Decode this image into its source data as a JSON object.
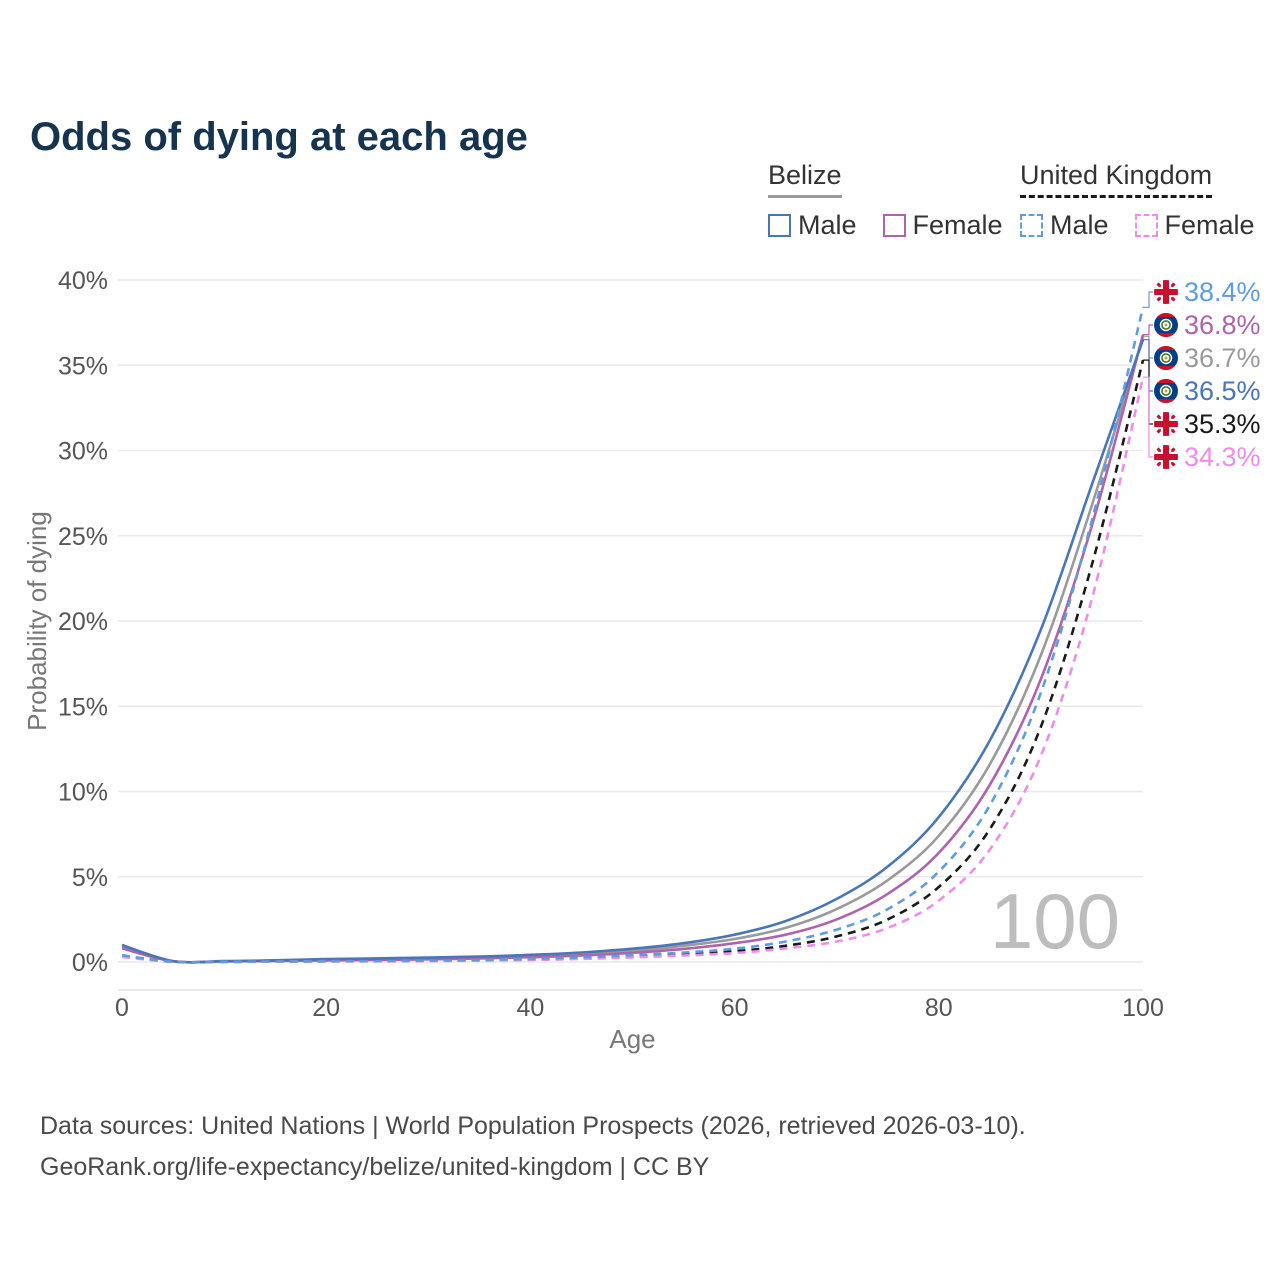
{
  "title": "Odds of dying at each age",
  "watermark_age": "100",
  "legend": {
    "belize": {
      "label": "Belize",
      "male": "Male",
      "female": "Female"
    },
    "uk": {
      "label": "United Kingdom",
      "male": "Male",
      "female": "Female"
    }
  },
  "colors": {
    "belize_male": "#4a76b8",
    "belize_female": "#ad63ad",
    "belize_all": "#9a9a9a",
    "uk_male": "#5e9ce0",
    "uk_female": "#ef8cea",
    "uk_all": "#1a1a1a",
    "title": "#16334f",
    "grid": "#e9e9e9",
    "axis_text": "#555555",
    "watermark": "#bdbdbd"
  },
  "footer": {
    "line1": "Data sources: United Nations | World Population Prospects (2026, retrieved 2026-03-10).",
    "line2": "GeoRank.org/life-expectancy/belize/united-kingdom | CC BY"
  },
  "chart_data": {
    "type": "line",
    "title": "Odds of dying at each age",
    "xlabel": "Age",
    "ylabel": "Probability of dying",
    "xlim": [
      0,
      100
    ],
    "ylim_percent": [
      0,
      40
    ],
    "grid": "horizontal",
    "legend_position": "top-right",
    "x_ticks": [
      0,
      20,
      40,
      60,
      80,
      100
    ],
    "y_tick_labels": [
      "0%",
      "5%",
      "10%",
      "15%",
      "20%",
      "25%",
      "30%",
      "35%",
      "40%"
    ],
    "y_ticks_percent": [
      0,
      5,
      10,
      15,
      20,
      25,
      30,
      35,
      40
    ],
    "hover_age": "100",
    "ages": [
      0,
      5,
      10,
      15,
      20,
      25,
      30,
      35,
      40,
      45,
      50,
      55,
      60,
      65,
      70,
      75,
      80,
      85,
      90,
      95,
      100
    ],
    "series": [
      {
        "name": "Belize",
        "sex": "all",
        "style": "solid",
        "color_key": "belize_all",
        "flag": "belize",
        "end_label": "36.7%",
        "values": [
          0.9,
          0.05,
          0.04,
          0.08,
          0.13,
          0.17,
          0.21,
          0.26,
          0.35,
          0.47,
          0.66,
          0.95,
          1.35,
          2.0,
          3.1,
          4.8,
          7.4,
          11.6,
          18.0,
          26.8,
          36.7
        ]
      },
      {
        "name": "Belize Female",
        "sex": "female",
        "style": "solid",
        "color_key": "belize_female",
        "flag": "belize",
        "end_label": "36.8%",
        "values": [
          0.8,
          0.04,
          0.03,
          0.06,
          0.09,
          0.12,
          0.16,
          0.21,
          0.28,
          0.38,
          0.54,
          0.77,
          1.1,
          1.6,
          2.5,
          4.0,
          6.4,
          10.4,
          16.6,
          25.6,
          36.8
        ]
      },
      {
        "name": "Belize Male",
        "sex": "male",
        "style": "solid",
        "color_key": "belize_male",
        "flag": "belize",
        "end_label": "36.5%",
        "values": [
          1.0,
          0.05,
          0.05,
          0.1,
          0.17,
          0.21,
          0.26,
          0.32,
          0.42,
          0.56,
          0.78,
          1.1,
          1.6,
          2.4,
          3.7,
          5.6,
          8.5,
          13.0,
          19.5,
          28.0,
          36.5
        ]
      },
      {
        "name": "United Kingdom",
        "sex": "all",
        "style": "dashed",
        "color_key": "uk_all",
        "flag": "uk",
        "end_label": "35.3%",
        "values": [
          0.35,
          0.01,
          0.01,
          0.02,
          0.04,
          0.05,
          0.07,
          0.1,
          0.15,
          0.22,
          0.33,
          0.46,
          0.63,
          0.95,
          1.5,
          2.5,
          4.4,
          7.8,
          13.8,
          23.3,
          35.3
        ]
      },
      {
        "name": "United Kingdom Female",
        "sex": "female",
        "style": "dashed",
        "color_key": "uk_female",
        "flag": "uk",
        "end_label": "34.3%",
        "values": [
          0.3,
          0.01,
          0.01,
          0.02,
          0.03,
          0.04,
          0.05,
          0.08,
          0.12,
          0.18,
          0.27,
          0.38,
          0.52,
          0.8,
          1.2,
          2.0,
          3.6,
          6.6,
          12.1,
          21.3,
          34.3
        ]
      },
      {
        "name": "United Kingdom Male",
        "sex": "male",
        "style": "dashed",
        "color_key": "uk_male",
        "flag": "uk",
        "end_label": "38.4%",
        "values": [
          0.4,
          0.01,
          0.01,
          0.03,
          0.05,
          0.06,
          0.08,
          0.12,
          0.18,
          0.27,
          0.4,
          0.55,
          0.78,
          1.2,
          1.9,
          3.1,
          5.3,
          9.2,
          15.8,
          25.9,
          38.4
        ]
      }
    ]
  }
}
